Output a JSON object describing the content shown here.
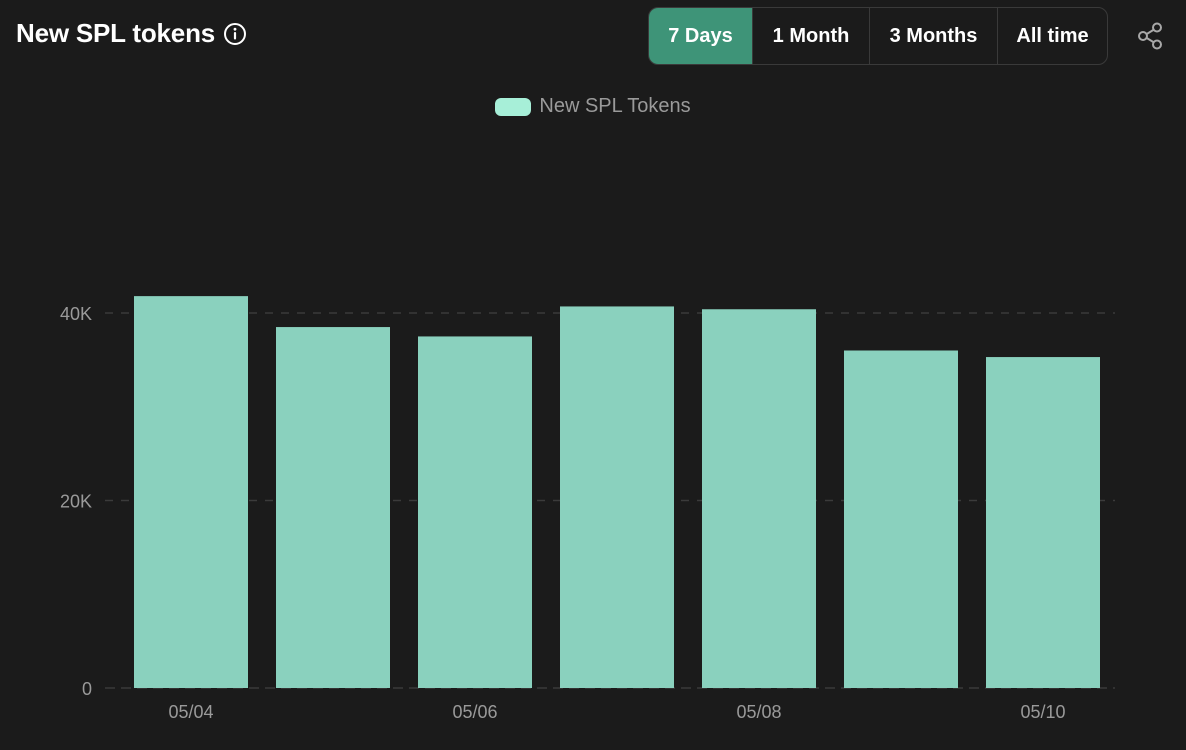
{
  "header": {
    "title": "New SPL tokens"
  },
  "time_range": {
    "options": [
      "7 Days",
      "1 Month",
      "3 Months",
      "All time"
    ],
    "selected": "7 Days"
  },
  "colors": {
    "bar": "#8ad1be",
    "legend_swatch": "#a7efd8",
    "active_button": "#3e9478",
    "background": "#1b1b1b"
  },
  "chart_data": {
    "type": "bar",
    "categories": [
      "05/04",
      "05/05",
      "05/06",
      "05/07",
      "05/08",
      "05/09",
      "05/10"
    ],
    "series": [
      {
        "name": "New SPL Tokens",
        "values": [
          41800,
          38500,
          37500,
          40700,
          40400,
          36000,
          35300
        ]
      }
    ],
    "x_tick_labels": [
      "05/04",
      "05/06",
      "05/08",
      "05/10"
    ],
    "y_ticks": [
      0,
      20000,
      40000
    ],
    "y_tick_labels": [
      "0",
      "20K",
      "40K"
    ],
    "ylim": [
      0,
      40000
    ],
    "grid": true,
    "legend_position": "top-center"
  }
}
